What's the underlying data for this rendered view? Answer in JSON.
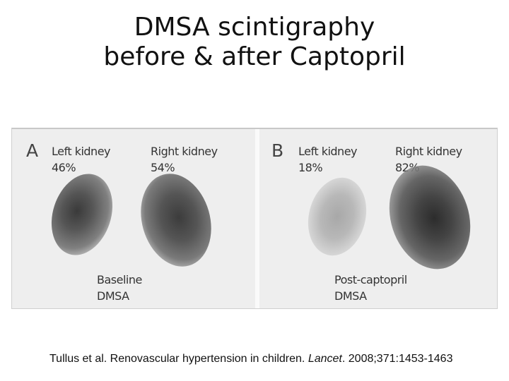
{
  "slide": {
    "title_line1": "DMSA scintigraphy",
    "title_line2": "before & after Captopril"
  },
  "figure": {
    "panel_a": {
      "letter": "A",
      "left_kidney_label": "Left kidney",
      "left_kidney_value": "46%",
      "right_kidney_label": "Right kidney",
      "right_kidney_value": "54%",
      "condition_line1": "Baseline",
      "condition_line2": "DMSA"
    },
    "panel_b": {
      "letter": "B",
      "left_kidney_label": "Left kidney",
      "left_kidney_value": "18%",
      "right_kidney_label": "Right kidney",
      "right_kidney_value": "82%",
      "condition_line1": "Post-captopril",
      "condition_line2": "DMSA"
    }
  },
  "citation": {
    "authors_title": "Tullus et al. Renovascular hypertension in children.",
    "journal": "Lancet",
    "details": ". 2008;371:1453-1463"
  }
}
